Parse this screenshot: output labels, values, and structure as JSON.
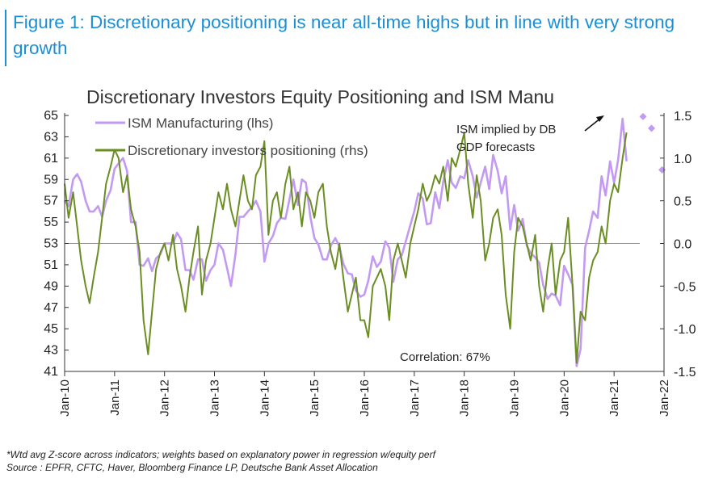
{
  "caption": "Figure 1: Discretionary positioning is near all-time highs but in line with very strong growth",
  "chart_data": {
    "type": "line",
    "title": "Discretionary Investors Equity Positioning and ISM Manu",
    "x_ticks": [
      "Jan-10",
      "Jan-11",
      "Jan-12",
      "Jan-13",
      "Jan-14",
      "Jan-15",
      "Jan-16",
      "Jan-17",
      "Jan-18",
      "Jan-19",
      "Jan-20",
      "Jan-21",
      "Jan-22"
    ],
    "y_left": {
      "range": [
        41,
        65
      ],
      "ticks": [
        "65",
        "63",
        "61",
        "59",
        "57",
        "55",
        "53",
        "51",
        "49",
        "47",
        "45",
        "43",
        "41"
      ]
    },
    "y_right": {
      "range": [
        -1.5,
        1.5
      ],
      "ticks": [
        "1.5",
        "1.0",
        "0.5",
        "0.0",
        "-0.5",
        "-1.0",
        "-1.5"
      ]
    },
    "legend_position": "top-left",
    "grid": false,
    "series": [
      {
        "name": "ISM Manufacturing (lhs)",
        "axis": "left",
        "color": "#c39af2",
        "x": [
          2010.0,
          2010.08,
          2010.17,
          2010.25,
          2010.33,
          2010.42,
          2010.5,
          2010.58,
          2010.67,
          2010.75,
          2010.83,
          2010.92,
          2011.0,
          2011.08,
          2011.17,
          2011.25,
          2011.33,
          2011.42,
          2011.5,
          2011.58,
          2011.67,
          2011.75,
          2011.83,
          2011.92,
          2012.0,
          2012.08,
          2012.17,
          2012.25,
          2012.33,
          2012.42,
          2012.5,
          2012.58,
          2012.67,
          2012.75,
          2012.83,
          2012.92,
          2013.0,
          2013.08,
          2013.17,
          2013.25,
          2013.33,
          2013.42,
          2013.5,
          2013.58,
          2013.67,
          2013.75,
          2013.83,
          2013.92,
          2014.0,
          2014.08,
          2014.17,
          2014.25,
          2014.33,
          2014.42,
          2014.5,
          2014.58,
          2014.67,
          2014.75,
          2014.83,
          2014.92,
          2015.0,
          2015.08,
          2015.17,
          2015.25,
          2015.33,
          2015.42,
          2015.5,
          2015.58,
          2015.67,
          2015.75,
          2015.83,
          2015.92,
          2016.0,
          2016.08,
          2016.17,
          2016.25,
          2016.33,
          2016.42,
          2016.5,
          2016.58,
          2016.67,
          2016.75,
          2016.83,
          2016.92,
          2017.0,
          2017.08,
          2017.17,
          2017.25,
          2017.33,
          2017.42,
          2017.5,
          2017.58,
          2017.67,
          2017.75,
          2017.83,
          2017.92,
          2018.0,
          2018.08,
          2018.17,
          2018.25,
          2018.33,
          2018.42,
          2018.5,
          2018.58,
          2018.67,
          2018.75,
          2018.83,
          2018.92,
          2019.0,
          2019.08,
          2019.17,
          2019.25,
          2019.33,
          2019.42,
          2019.5,
          2019.58,
          2019.67,
          2019.75,
          2019.83,
          2019.92,
          2020.0,
          2020.08,
          2020.17,
          2020.25,
          2020.33,
          2020.42,
          2020.5,
          2020.58,
          2020.67,
          2020.75,
          2020.83,
          2020.92,
          2021.0,
          2021.08,
          2021.17,
          2021.25
        ],
        "values": [
          57,
          56.5,
          59,
          59.5,
          58.8,
          57,
          56,
          56,
          56.5,
          55.5,
          57,
          58,
          60,
          60.5,
          61,
          59.8,
          55,
          55,
          51,
          50.9,
          51.6,
          50.4,
          51.6,
          52,
          53,
          53,
          53,
          54,
          53.4,
          50.5,
          50.5,
          49.6,
          51.5,
          51.5,
          49.5,
          50.5,
          51,
          53,
          52.4,
          50.7,
          49,
          52,
          55.5,
          55.5,
          56,
          56.4,
          57,
          56,
          51.3,
          53,
          53.7,
          54.9,
          55.4,
          55.3,
          57.1,
          59,
          56.6,
          59,
          58.7,
          55.5,
          53.5,
          52.9,
          51.5,
          51.5,
          52.8,
          53.5,
          52.7,
          51.1,
          50.2,
          50.1,
          48.6,
          48,
          48.2,
          49.5,
          51.8,
          50.8,
          51.3,
          53.2,
          52.6,
          49.4,
          51.5,
          51.9,
          53.2,
          54.7,
          56,
          57.7,
          57.2,
          54.8,
          54.9,
          57.8,
          56.3,
          58.8,
          60.8,
          58.7,
          58.2,
          59.3,
          59.1,
          60.8,
          59.3,
          57.3,
          58.7,
          60.2,
          58.1,
          61.3,
          59.8,
          57.7,
          59.3,
          54.3,
          56.6,
          54.2,
          55.3,
          52.8,
          52.1,
          51.7,
          51.2,
          49.1,
          47.8,
          48.3,
          48.1,
          47.2,
          50.9,
          50.1,
          49.1,
          41.5,
          43.1,
          52.6,
          54.2,
          56,
          55.4,
          59.3,
          57.5,
          60.7,
          58.7,
          60.8,
          64.7,
          60.7
        ],
        "forecast": {
          "label": "ISM implied by DB GDP forecasts",
          "x": [
            2021.58,
            2021.75,
            2021.96
          ],
          "values": [
            64.9,
            63.8,
            59.9
          ]
        }
      },
      {
        "name": "Discretionary investors positioning (rhs)",
        "axis": "right",
        "color": "#6b8e23",
        "x": [
          2010.0,
          2010.08,
          2010.17,
          2010.25,
          2010.33,
          2010.42,
          2010.5,
          2010.58,
          2010.67,
          2010.75,
          2010.83,
          2010.92,
          2011.0,
          2011.08,
          2011.17,
          2011.25,
          2011.33,
          2011.42,
          2011.5,
          2011.58,
          2011.67,
          2011.75,
          2011.83,
          2011.92,
          2012.0,
          2012.08,
          2012.17,
          2012.25,
          2012.33,
          2012.42,
          2012.5,
          2012.58,
          2012.67,
          2012.75,
          2012.83,
          2012.92,
          2013.0,
          2013.08,
          2013.17,
          2013.25,
          2013.33,
          2013.42,
          2013.5,
          2013.58,
          2013.67,
          2013.75,
          2013.83,
          2013.92,
          2014.0,
          2014.08,
          2014.17,
          2014.25,
          2014.33,
          2014.42,
          2014.5,
          2014.58,
          2014.67,
          2014.75,
          2014.83,
          2014.92,
          2015.0,
          2015.08,
          2015.17,
          2015.25,
          2015.33,
          2015.42,
          2015.5,
          2015.58,
          2015.67,
          2015.75,
          2015.83,
          2015.92,
          2016.0,
          2016.08,
          2016.17,
          2016.25,
          2016.33,
          2016.42,
          2016.5,
          2016.58,
          2016.67,
          2016.75,
          2016.83,
          2016.92,
          2017.0,
          2017.08,
          2017.17,
          2017.25,
          2017.33,
          2017.42,
          2017.5,
          2017.58,
          2017.67,
          2017.75,
          2017.83,
          2017.92,
          2018.0,
          2018.08,
          2018.17,
          2018.25,
          2018.33,
          2018.42,
          2018.5,
          2018.58,
          2018.67,
          2018.75,
          2018.83,
          2018.92,
          2019.0,
          2019.08,
          2019.17,
          2019.25,
          2019.33,
          2019.42,
          2019.5,
          2019.58,
          2019.67,
          2019.75,
          2019.83,
          2019.92,
          2020.0,
          2020.08,
          2020.17,
          2020.25,
          2020.33,
          2020.42,
          2020.5,
          2020.58,
          2020.67,
          2020.75,
          2020.83,
          2020.92,
          2021.0,
          2021.08,
          2021.17,
          2021.25
        ],
        "values": [
          0.7,
          0.3,
          0.6,
          0.2,
          -0.2,
          -0.5,
          -0.7,
          -0.4,
          -0.1,
          0.3,
          0.7,
          0.9,
          1.1,
          1.0,
          0.6,
          0.8,
          0.4,
          0.2,
          -0.1,
          -0.9,
          -1.3,
          -0.8,
          -0.3,
          -0.1,
          0.0,
          -0.2,
          0.1,
          -0.3,
          -0.5,
          -0.8,
          -0.4,
          -0.1,
          0.2,
          -0.6,
          -0.2,
          0.0,
          0.3,
          0.6,
          0.4,
          0.7,
          0.4,
          0.2,
          0.5,
          0.8,
          0.5,
          0.4,
          0.8,
          0.9,
          1.2,
          0.1,
          0.5,
          0.6,
          0.3,
          0.7,
          0.9,
          0.4,
          0.6,
          0.2,
          0.6,
          0.5,
          0.3,
          0.6,
          0.7,
          0.2,
          -0.1,
          -0.3,
          0.0,
          -0.4,
          -0.8,
          -0.6,
          -0.4,
          -0.9,
          -0.9,
          -1.1,
          -0.5,
          -0.4,
          -0.3,
          -0.5,
          -0.9,
          -0.2,
          0.0,
          -0.2,
          -0.4,
          0.0,
          0.2,
          0.4,
          0.7,
          0.5,
          0.6,
          0.8,
          0.7,
          0.9,
          0.5,
          1.0,
          0.9,
          1.1,
          1.3,
          0.7,
          0.3,
          0.8,
          0.5,
          -0.2,
          0.0,
          0.3,
          0.4,
          0.1,
          -0.6,
          -1.0,
          -0.1,
          0.3,
          0.2,
          0.0,
          -0.2,
          0.1,
          -0.5,
          -0.8,
          -0.3,
          0.0,
          -0.6,
          -0.2,
          -0.1,
          0.3,
          -0.5,
          -1.4,
          -0.8,
          -0.9,
          -0.4,
          -0.2,
          -0.1,
          0.2,
          0.0,
          0.5,
          0.7,
          0.6,
          1.0,
          1.3
        ]
      }
    ],
    "annotations": [
      "Correlation: 67%"
    ]
  },
  "footnote": "*Wtd avg Z-score across indicators; weights based on explanatory power in regression w/equity perf",
  "source": "Source : EPFR, CFTC, Haver, Bloomberg Finance LP, Deutsche Bank Asset Allocation"
}
